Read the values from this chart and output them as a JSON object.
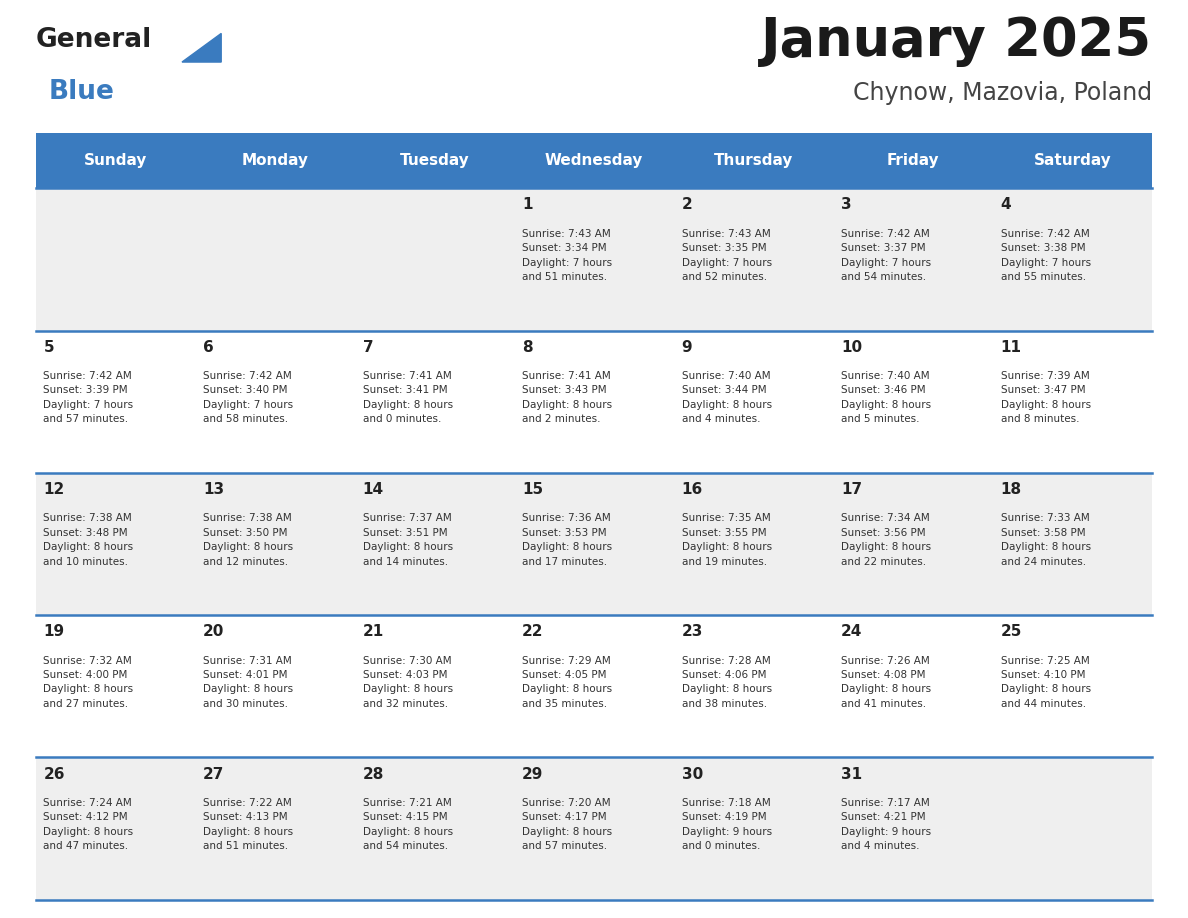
{
  "title": "January 2025",
  "subtitle": "Chynow, Mazovia, Poland",
  "header_color": "#3a7bbf",
  "header_text_color": "#ffffff",
  "cell_bg_odd": "#efefef",
  "cell_bg_even": "#ffffff",
  "day_text_color": "#222222",
  "info_text_color": "#333333",
  "separator_color": "#3a7bbf",
  "days_of_week": [
    "Sunday",
    "Monday",
    "Tuesday",
    "Wednesday",
    "Thursday",
    "Friday",
    "Saturday"
  ],
  "logo_general_color": "#222222",
  "logo_blue_color": "#3a7bbf",
  "logo_triangle_color": "#3a7bbf",
  "calendar_data": [
    [
      {
        "day": "",
        "info": ""
      },
      {
        "day": "",
        "info": ""
      },
      {
        "day": "",
        "info": ""
      },
      {
        "day": "1",
        "info": "Sunrise: 7:43 AM\nSunset: 3:34 PM\nDaylight: 7 hours\nand 51 minutes."
      },
      {
        "day": "2",
        "info": "Sunrise: 7:43 AM\nSunset: 3:35 PM\nDaylight: 7 hours\nand 52 minutes."
      },
      {
        "day": "3",
        "info": "Sunrise: 7:42 AM\nSunset: 3:37 PM\nDaylight: 7 hours\nand 54 minutes."
      },
      {
        "day": "4",
        "info": "Sunrise: 7:42 AM\nSunset: 3:38 PM\nDaylight: 7 hours\nand 55 minutes."
      }
    ],
    [
      {
        "day": "5",
        "info": "Sunrise: 7:42 AM\nSunset: 3:39 PM\nDaylight: 7 hours\nand 57 minutes."
      },
      {
        "day": "6",
        "info": "Sunrise: 7:42 AM\nSunset: 3:40 PM\nDaylight: 7 hours\nand 58 minutes."
      },
      {
        "day": "7",
        "info": "Sunrise: 7:41 AM\nSunset: 3:41 PM\nDaylight: 8 hours\nand 0 minutes."
      },
      {
        "day": "8",
        "info": "Sunrise: 7:41 AM\nSunset: 3:43 PM\nDaylight: 8 hours\nand 2 minutes."
      },
      {
        "day": "9",
        "info": "Sunrise: 7:40 AM\nSunset: 3:44 PM\nDaylight: 8 hours\nand 4 minutes."
      },
      {
        "day": "10",
        "info": "Sunrise: 7:40 AM\nSunset: 3:46 PM\nDaylight: 8 hours\nand 5 minutes."
      },
      {
        "day": "11",
        "info": "Sunrise: 7:39 AM\nSunset: 3:47 PM\nDaylight: 8 hours\nand 8 minutes."
      }
    ],
    [
      {
        "day": "12",
        "info": "Sunrise: 7:38 AM\nSunset: 3:48 PM\nDaylight: 8 hours\nand 10 minutes."
      },
      {
        "day": "13",
        "info": "Sunrise: 7:38 AM\nSunset: 3:50 PM\nDaylight: 8 hours\nand 12 minutes."
      },
      {
        "day": "14",
        "info": "Sunrise: 7:37 AM\nSunset: 3:51 PM\nDaylight: 8 hours\nand 14 minutes."
      },
      {
        "day": "15",
        "info": "Sunrise: 7:36 AM\nSunset: 3:53 PM\nDaylight: 8 hours\nand 17 minutes."
      },
      {
        "day": "16",
        "info": "Sunrise: 7:35 AM\nSunset: 3:55 PM\nDaylight: 8 hours\nand 19 minutes."
      },
      {
        "day": "17",
        "info": "Sunrise: 7:34 AM\nSunset: 3:56 PM\nDaylight: 8 hours\nand 22 minutes."
      },
      {
        "day": "18",
        "info": "Sunrise: 7:33 AM\nSunset: 3:58 PM\nDaylight: 8 hours\nand 24 minutes."
      }
    ],
    [
      {
        "day": "19",
        "info": "Sunrise: 7:32 AM\nSunset: 4:00 PM\nDaylight: 8 hours\nand 27 minutes."
      },
      {
        "day": "20",
        "info": "Sunrise: 7:31 AM\nSunset: 4:01 PM\nDaylight: 8 hours\nand 30 minutes."
      },
      {
        "day": "21",
        "info": "Sunrise: 7:30 AM\nSunset: 4:03 PM\nDaylight: 8 hours\nand 32 minutes."
      },
      {
        "day": "22",
        "info": "Sunrise: 7:29 AM\nSunset: 4:05 PM\nDaylight: 8 hours\nand 35 minutes."
      },
      {
        "day": "23",
        "info": "Sunrise: 7:28 AM\nSunset: 4:06 PM\nDaylight: 8 hours\nand 38 minutes."
      },
      {
        "day": "24",
        "info": "Sunrise: 7:26 AM\nSunset: 4:08 PM\nDaylight: 8 hours\nand 41 minutes."
      },
      {
        "day": "25",
        "info": "Sunrise: 7:25 AM\nSunset: 4:10 PM\nDaylight: 8 hours\nand 44 minutes."
      }
    ],
    [
      {
        "day": "26",
        "info": "Sunrise: 7:24 AM\nSunset: 4:12 PM\nDaylight: 8 hours\nand 47 minutes."
      },
      {
        "day": "27",
        "info": "Sunrise: 7:22 AM\nSunset: 4:13 PM\nDaylight: 8 hours\nand 51 minutes."
      },
      {
        "day": "28",
        "info": "Sunrise: 7:21 AM\nSunset: 4:15 PM\nDaylight: 8 hours\nand 54 minutes."
      },
      {
        "day": "29",
        "info": "Sunrise: 7:20 AM\nSunset: 4:17 PM\nDaylight: 8 hours\nand 57 minutes."
      },
      {
        "day": "30",
        "info": "Sunrise: 7:18 AM\nSunset: 4:19 PM\nDaylight: 9 hours\nand 0 minutes."
      },
      {
        "day": "31",
        "info": "Sunrise: 7:17 AM\nSunset: 4:21 PM\nDaylight: 9 hours\nand 4 minutes."
      },
      {
        "day": "",
        "info": ""
      }
    ]
  ]
}
